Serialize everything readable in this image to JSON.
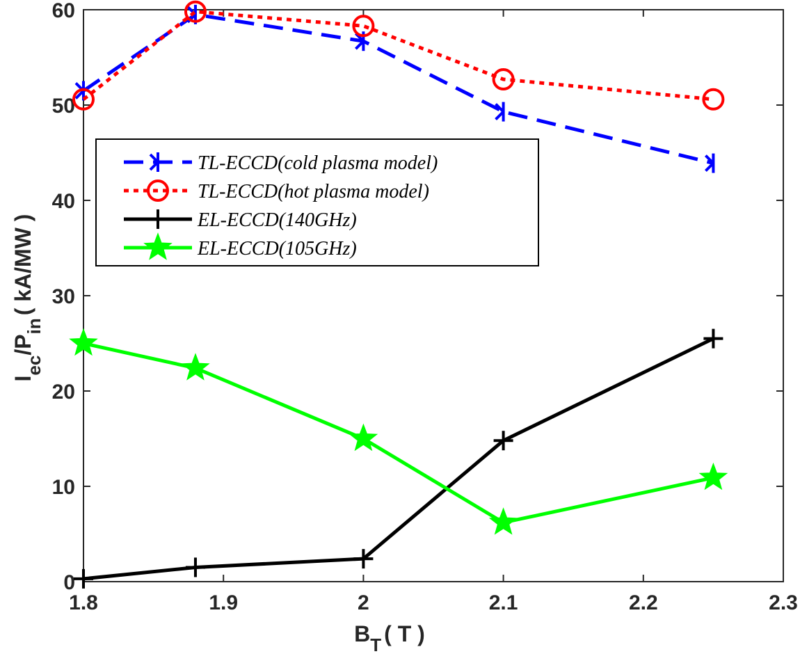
{
  "chart_data": {
    "type": "line",
    "title": "",
    "xlabel": {
      "main": "B",
      "sub": "T",
      "unit": "( T )"
    },
    "ylabel": {
      "main": "I",
      "sub1": "ec",
      "mid": "/P",
      "sub2": "in",
      "unit": "( kA/MW )"
    },
    "xlim": [
      1.8,
      2.3
    ],
    "ylim": [
      0,
      60
    ],
    "xticks": [
      1.8,
      1.9,
      2.0,
      2.1,
      2.2,
      2.3
    ],
    "xtick_labels": [
      "1.8",
      "1.9",
      "2",
      "2.1",
      "2.2",
      "2.3"
    ],
    "yticks": [
      0,
      10,
      20,
      30,
      40,
      50,
      60
    ],
    "ytick_labels": [
      "0",
      "10",
      "20",
      "30",
      "40",
      "50",
      "60"
    ],
    "grid": false,
    "legend_position": "upper-left",
    "series": [
      {
        "name": "TL-ECCD(cold plasma model)",
        "color": "#0000ff",
        "style": "dashed",
        "marker": "arrow-star",
        "x": [
          1.8,
          1.88,
          2.0,
          2.1,
          2.25
        ],
        "y": [
          51.5,
          59.5,
          56.7,
          49.3,
          43.9
        ]
      },
      {
        "name": "TL-ECCD(hot plasma model)",
        "color": "#ff0000",
        "style": "dotted",
        "marker": "circle",
        "x": [
          1.8,
          1.88,
          2.0,
          2.1,
          2.25
        ],
        "y": [
          50.6,
          59.8,
          58.3,
          52.7,
          50.6
        ]
      },
      {
        "name": "EL-ECCD(140GHz)",
        "color": "#000000",
        "style": "solid",
        "marker": "plus",
        "x": [
          1.8,
          1.88,
          2.0,
          2.1,
          2.25
        ],
        "y": [
          0.3,
          1.5,
          2.4,
          14.8,
          25.5
        ]
      },
      {
        "name": "EL-ECCD(105GHz)",
        "color": "#00ff00",
        "style": "solid",
        "marker": "star",
        "x": [
          1.8,
          1.88,
          2.0,
          2.1,
          2.25
        ],
        "y": [
          25.0,
          22.4,
          15.0,
          6.2,
          10.9
        ]
      }
    ]
  }
}
